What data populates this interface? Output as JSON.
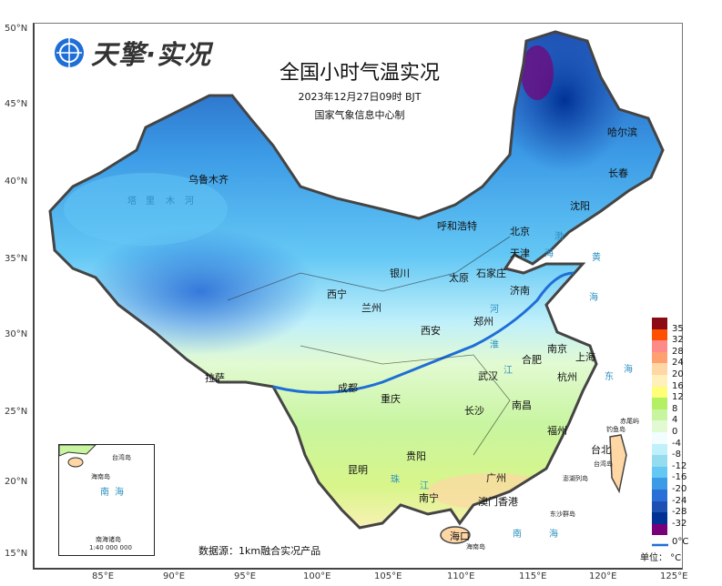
{
  "logo": {
    "text": "天擎·实况"
  },
  "title": {
    "main": "全国小时气温实况",
    "datetime": "2023年12月27日09时 BJT",
    "producer": "国家气象信息中心制"
  },
  "axes": {
    "lat_ticks": [
      "50°N",
      "45°N",
      "40°N",
      "35°N",
      "30°N",
      "25°N",
      "20°N",
      "15°N"
    ],
    "lon_ticks": [
      "85°E",
      "90°E",
      "95°E",
      "100°E",
      "105°E",
      "110°E",
      "115°E",
      "120°E",
      "125°E"
    ]
  },
  "cities": [
    "乌鲁木齐",
    "哈尔滨",
    "长春",
    "沈阳",
    "呼和浩特",
    "北京",
    "天津",
    "石家庄",
    "太原",
    "银川",
    "西宁",
    "兰州",
    "济南",
    "郑州",
    "西安",
    "拉萨",
    "成都",
    "重庆",
    "武汉",
    "合肥",
    "南京",
    "上海",
    "杭州",
    "长沙",
    "南昌",
    "福州",
    "贵阳",
    "昆明",
    "南宁",
    "广州",
    "澳门",
    "香港",
    "海口",
    "台北"
  ],
  "water_labels": [
    "塔",
    "里",
    "木",
    "河",
    "渤",
    "海",
    "黄",
    "海",
    "东",
    "海",
    "南",
    "海",
    "河",
    "淮",
    "江",
    "珠",
    "江"
  ],
  "islands": [
    "赤尾屿",
    "钓鱼岛",
    "台湾岛",
    "澎湖列岛",
    "东沙群岛",
    "海南岛"
  ],
  "inset": {
    "labels": [
      "台湾岛",
      "海南岛",
      "南",
      "海",
      "南海诸岛",
      "1:40 000 000"
    ]
  },
  "legend": {
    "colors": [
      "#8b0a14",
      "#ff5000",
      "#ff8a8a",
      "#ffa070",
      "#ffd7a5",
      "#fff0bc",
      "#ffff78",
      "#b4f064",
      "#c8f5a0",
      "#e2fad2",
      "#f2fdff",
      "#c0f0fa",
      "#96dcf0",
      "#64c8f5",
      "#3c9be6",
      "#2a6ed7",
      "#1e50b4",
      "#003296",
      "#780078"
    ],
    "labels": [
      "35",
      "32",
      "28",
      "24",
      "20",
      "16",
      "12",
      "8",
      "4",
      "0",
      "-4",
      "-8",
      "-12",
      "-16",
      "-20",
      "-24",
      "-28",
      "-32"
    ],
    "zero_line_label": "0°C",
    "zero_line_color": "#1e6ed7",
    "unit": "单位： °C"
  },
  "source": "数据源：1km融合实况产品"
}
